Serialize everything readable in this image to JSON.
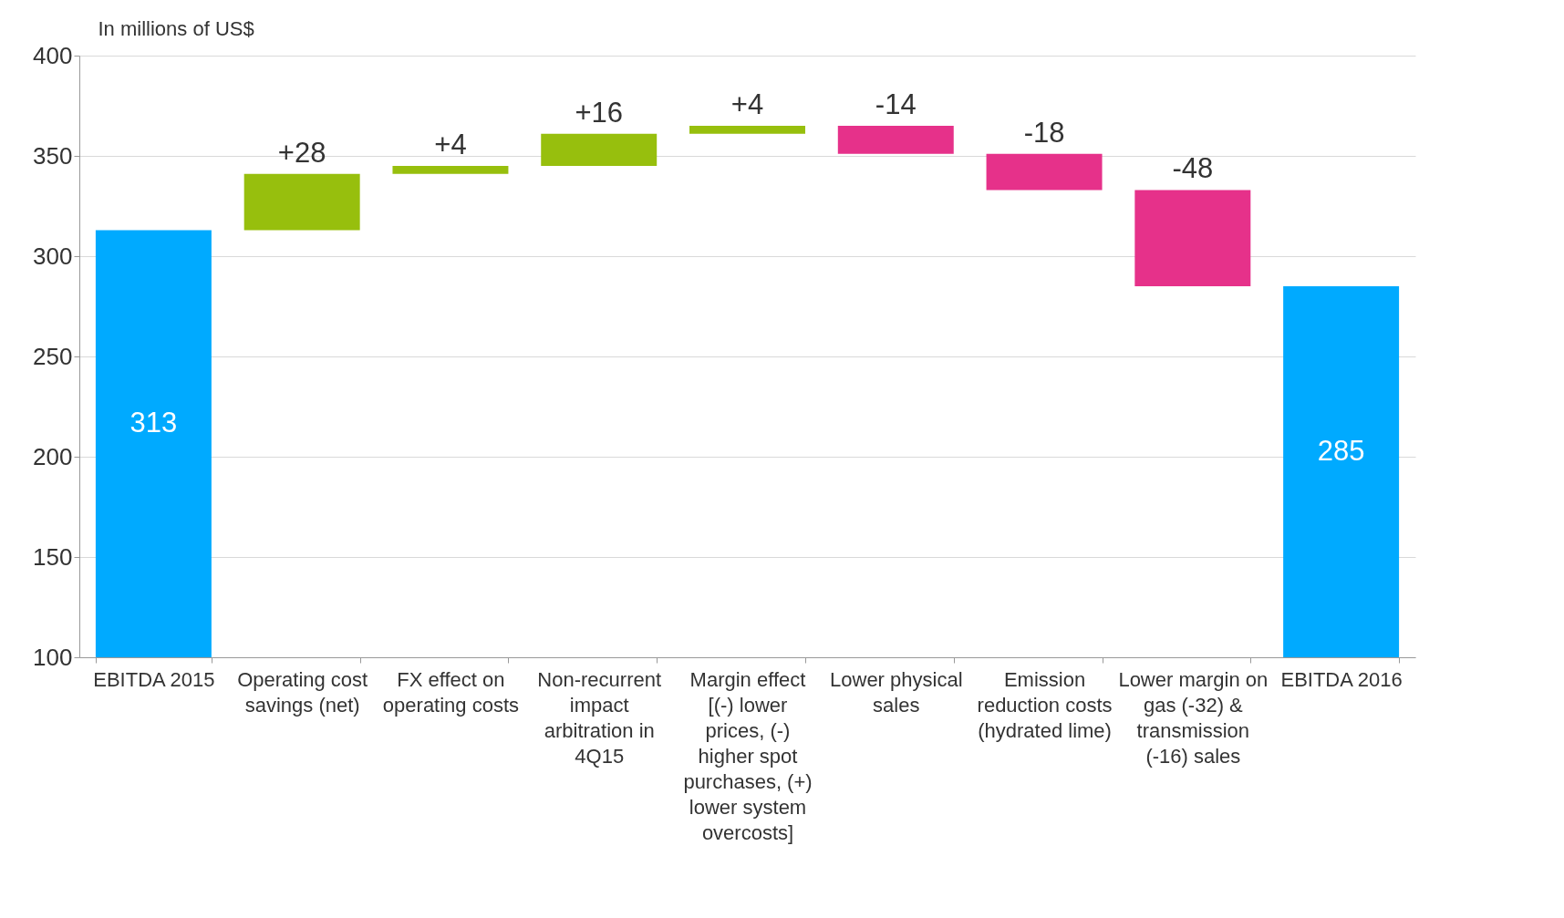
{
  "chart_data": {
    "type": "bar",
    "ylabel": "In millions of US$",
    "categories": [
      "EBITDA 2015",
      "Operating cost savings (net)",
      "FX effect on operating costs",
      "Non-recurrent impact arbitration in 4Q15",
      "Margin effect [(-) lower prices, (-) higher spot purchases, (+) lower system overcosts]",
      "Lower physical sales",
      "Emission reduction costs (hydrated lime)",
      "Lower margin on gas (-32) & transmission (-16) sales",
      "EBITDA 2016"
    ],
    "values": [
      313,
      28,
      4,
      16,
      4,
      -14,
      -18,
      -48,
      285
    ],
    "base": [
      null,
      313,
      341,
      345,
      361,
      365,
      351,
      333,
      null
    ],
    "colors": [
      "#00aaff",
      "#97bf0d",
      "#97bf0d",
      "#97bf0d",
      "#97bf0d",
      "#e6318a",
      "#e6318a",
      "#e6318a",
      "#00aaff"
    ],
    "value_labels": [
      "313",
      "+28",
      "+4",
      "+16",
      "+4",
      "-14",
      "-18",
      "-48",
      "285"
    ],
    "ylim": [
      100,
      400
    ],
    "yticks": [
      100,
      150,
      200,
      250,
      300,
      350,
      400
    ],
    "grid": "y"
  }
}
